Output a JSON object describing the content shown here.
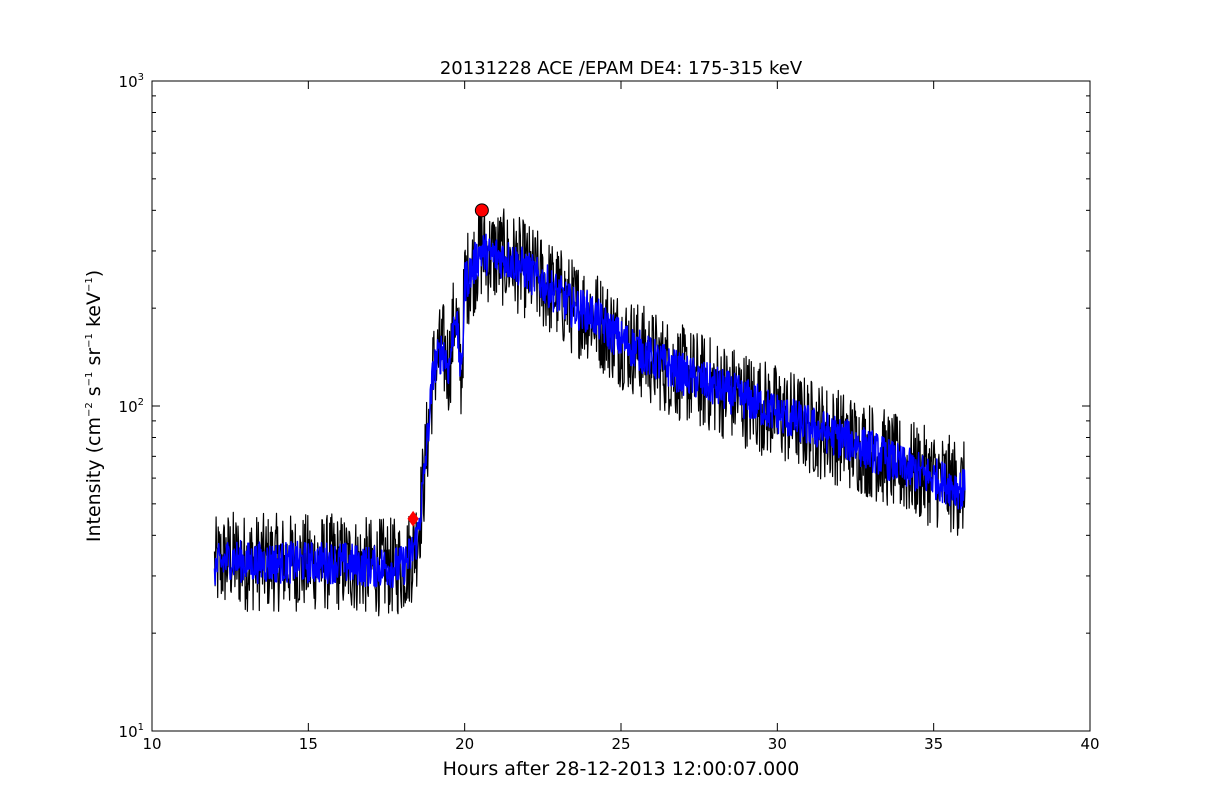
{
  "chart_data": {
    "type": "line",
    "title": "20131228 ACE /EPAM DE4: 175-315 keV",
    "xlabel": "Hours after 28-12-2013 12:00:07.000",
    "ylabel": "Intensity (cm$^{-2}$ s$^{-1}$ sr$^{-1}$ keV$^{-1}$)",
    "ylabel_parts": {
      "prefix": "Intensity (cm",
      "exp1": "−2",
      "s": " s",
      "exp2": "−1",
      "sr": " sr",
      "exp3": "−1",
      "kev": " keV",
      "exp4": "−1",
      "suffix": ")"
    },
    "xlim": [
      10,
      40
    ],
    "ylim": [
      10,
      1000
    ],
    "yscale": "log",
    "grid": false,
    "x_ticks": [
      "10",
      "15",
      "20",
      "25",
      "30",
      "35",
      "40"
    ],
    "y_ticks": [
      {
        "base": "10",
        "exp": "1"
      },
      {
        "base": "10",
        "exp": "2"
      },
      {
        "base": "10",
        "exp": "3"
      }
    ],
    "series": [
      {
        "color": "#000000",
        "style": "noisy raw intensity",
        "x": [
          12.0,
          12.5,
          13.0,
          14.0,
          15.0,
          16.0,
          17.0,
          18.0,
          18.3,
          18.5,
          18.7,
          18.9,
          19.0,
          19.3,
          19.5,
          19.7,
          19.9,
          20.0,
          20.3,
          20.5,
          20.8,
          21.0,
          21.5,
          22.0,
          22.5,
          23.0,
          23.5,
          24.0,
          24.5,
          25.0,
          26.0,
          27.0,
          28.0,
          29.0,
          30.0,
          31.0,
          32.0,
          33.0,
          34.0,
          35.0,
          36.0
        ],
        "y": [
          32,
          34,
          33,
          33,
          33,
          33,
          32,
          32,
          35,
          40,
          60,
          100,
          130,
          150,
          130,
          200,
          120,
          240,
          270,
          300,
          290,
          290,
          280,
          260,
          240,
          220,
          200,
          195,
          175,
          160,
          140,
          125,
          115,
          105,
          95,
          87,
          80,
          73,
          65,
          60,
          55
        ],
        "noise": 0.35
      },
      {
        "color": "#0000ff",
        "style": "smoothed intensity",
        "x": [
          12.0,
          12.5,
          13.0,
          14.0,
          15.0,
          16.0,
          17.0,
          18.0,
          18.3,
          18.5,
          18.7,
          18.9,
          19.0,
          19.3,
          19.5,
          19.7,
          19.9,
          20.0,
          20.3,
          20.5,
          20.8,
          21.0,
          21.5,
          22.0,
          22.5,
          23.0,
          23.5,
          24.0,
          24.5,
          25.0,
          26.0,
          27.0,
          28.0,
          29.0,
          30.0,
          31.0,
          32.0,
          33.0,
          34.0,
          35.0,
          36.0
        ],
        "y": [
          32,
          34,
          33,
          33,
          33,
          33,
          32,
          32,
          35,
          40,
          60,
          100,
          130,
          150,
          130,
          200,
          120,
          240,
          270,
          300,
          290,
          290,
          280,
          260,
          240,
          220,
          200,
          195,
          175,
          160,
          140,
          125,
          115,
          105,
          95,
          87,
          80,
          73,
          65,
          60,
          55
        ],
        "noise": 0.15
      }
    ],
    "markers": [
      {
        "shape": "diamond",
        "color": "#ff0000",
        "x": 18.35,
        "y": 45
      },
      {
        "shape": "circle",
        "color": "#ff0000",
        "x": 20.55,
        "y": 400
      }
    ]
  }
}
